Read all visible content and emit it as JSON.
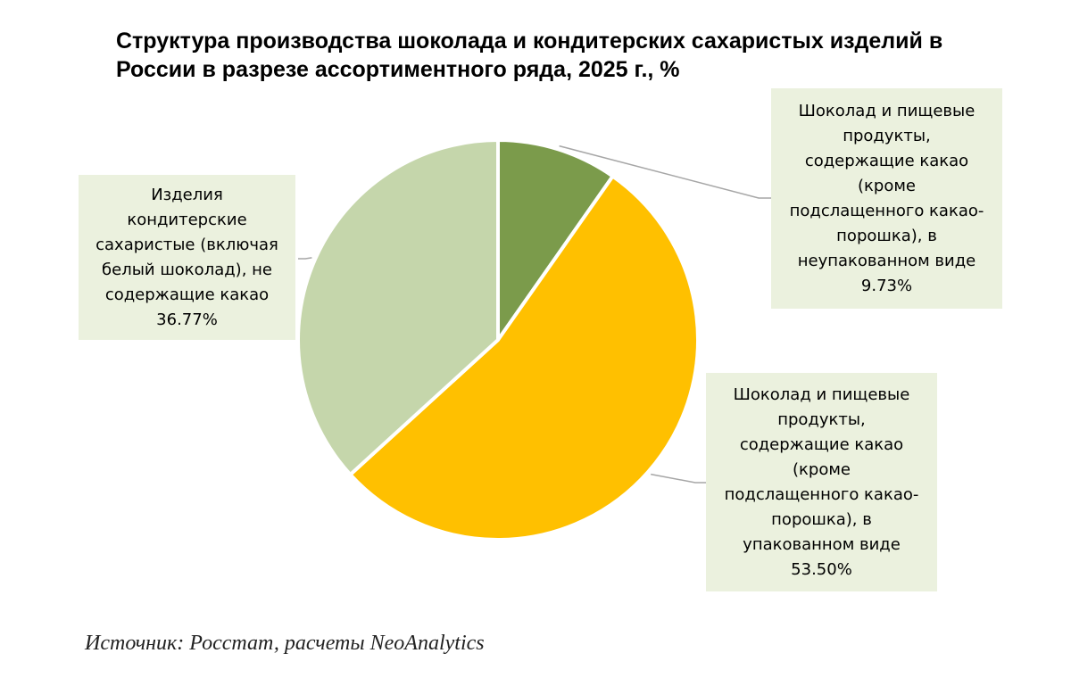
{
  "title_lines": [
    "Структура производства шоколада и кондитерских сахаристых изделий в",
    "России в разрезе ассортиментного ряда, 2025 г., %"
  ],
  "source": "Источник: Росстат, расчеты NeoAnalytics",
  "chart_data": {
    "type": "pie",
    "title": "Структура производства шоколада и кондитерских сахаристых изделий в России в разрезе ассортиментного ряда, 2025 г., %",
    "unit": "%",
    "slices": [
      {
        "name": "Шоколад и пищевые продукты, содержащие какао (кроме подслащенного какао-порошка), в неупакованном виде",
        "name_lines": [
          "Шоколад и пищевые",
          "продукты,",
          "содержащие какао",
          "(кроме",
          "подслащенного какао-",
          "порошка), в",
          "неупакованном виде"
        ],
        "value": 9.73,
        "value_label": "9.73%",
        "color": "#7b9b4b"
      },
      {
        "name": "Шоколад и пищевые продукты, содержащие какао (кроме подслащенного какао-порошка), в упакованном виде",
        "name_lines": [
          "Шоколад и пищевые",
          "продукты,",
          "содержащие какао",
          "(кроме",
          "подслащенного какао-",
          "порошка), в",
          "упакованном виде"
        ],
        "value": 53.5,
        "value_label": "53.50%",
        "color": "#ffc000"
      },
      {
        "name": "Изделия кондитерские сахаристые (включая белый шоколад), не содержащие какао",
        "name_lines": [
          "Изделия",
          "кондитерские",
          "сахаристые (включая",
          "белый шоколад), не",
          "содержащие какао"
        ],
        "value": 36.77,
        "value_label": "36.77%",
        "color": "#c5d6ab"
      }
    ],
    "label_box_color": "#ebf1de",
    "leader_line_color": "#a6a6a6"
  }
}
